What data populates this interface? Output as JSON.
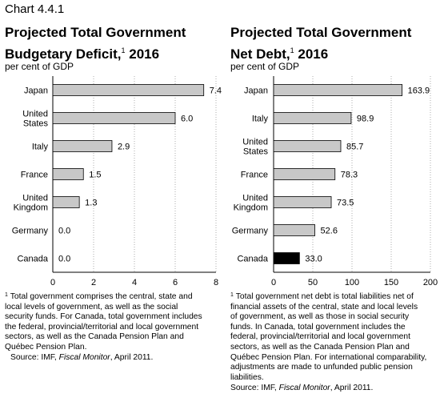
{
  "chart_label": "Chart 4.4.1",
  "chart_data": [
    {
      "type": "bar",
      "orientation": "horizontal",
      "title_lines": [
        "Projected Total Government",
        "Budgetary Deficit,",
        "2016"
      ],
      "title_footnote_mark": "1",
      "unit_label": "per cent of GDP",
      "categories": [
        [
          "Japan"
        ],
        [
          "United",
          "States"
        ],
        [
          "Italy"
        ],
        [
          "France"
        ],
        [
          "United",
          "Kingdom"
        ],
        [
          "Germany"
        ],
        [
          "Canada"
        ]
      ],
      "values": [
        7.4,
        6.0,
        2.9,
        1.5,
        1.3,
        0.0,
        0.0
      ],
      "value_labels": [
        "7.4",
        "6.0",
        "2.9",
        "1.5",
        "1.3",
        "0.0",
        "0.0"
      ],
      "highlight_index": null,
      "xlim": [
        0,
        8
      ],
      "xticks": [
        0,
        2,
        4,
        6,
        8
      ],
      "grid": "vertical dotted",
      "bar_color": "#c8c8c8",
      "highlight_color": "#000000",
      "footnote_mark": "1",
      "footnote_lines": [
        "Total government comprises the central, state and",
        "local levels of government, as well as the social",
        "security funds. For Canada, total government includes",
        "the federal, provincial/territorial and local government",
        "sectors, as well as the Canada Pension Plan and",
        "Québec Pension Plan."
      ],
      "source_prefix": "Source: IMF, ",
      "source_title": "Fiscal Monitor",
      "source_suffix": ", April 2011."
    },
    {
      "type": "bar",
      "orientation": "horizontal",
      "title_lines": [
        "Projected Total Government",
        "Net Debt,",
        "2016"
      ],
      "title_footnote_mark": "1",
      "unit_label": "per cent of GDP",
      "categories": [
        [
          "Japan"
        ],
        [
          "Italy"
        ],
        [
          "United",
          "States"
        ],
        [
          "France"
        ],
        [
          "United",
          "Kingdom"
        ],
        [
          "Germany"
        ],
        [
          "Canada"
        ]
      ],
      "values": [
        163.9,
        98.9,
        85.7,
        78.3,
        73.5,
        52.6,
        33.0
      ],
      "value_labels": [
        "163.9",
        "98.9",
        "85.7",
        "78.3",
        "73.5",
        "52.6",
        "33.0"
      ],
      "highlight_index": 6,
      "xlim": [
        0,
        200
      ],
      "xticks": [
        0,
        50,
        100,
        150,
        200
      ],
      "grid": "vertical dotted",
      "bar_color": "#c8c8c8",
      "highlight_color": "#000000",
      "footnote_mark": "1",
      "footnote_lines": [
        "Total government net debt is total liabilities net of",
        "financial assets of the central, state and local levels",
        "of government, as well as those in social security",
        "funds. In Canada, total government includes the",
        "federal, provincial/territorial and local government",
        "sectors, as well as the Canada Pension Plan and",
        "Québec Pension Plan. For international comparability,",
        "adjustments are made to unfunded public pension",
        "liabilities."
      ],
      "source_prefix": "Source: IMF, ",
      "source_title": "Fiscal Monitor",
      "source_suffix": ", April 2011."
    }
  ]
}
